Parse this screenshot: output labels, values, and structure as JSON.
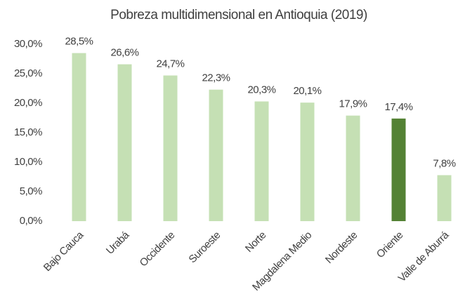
{
  "chart_data": {
    "type": "bar",
    "title": "Pobreza multidimensional en Antioquia (2019)",
    "categories": [
      "Bajo Cauca",
      "Urabá",
      "Occidente",
      "Suroeste",
      "Norte",
      "Magdalena Medio",
      "Nordeste",
      "Oriente",
      "Valle de Aburrá"
    ],
    "values": [
      28.5,
      26.6,
      24.7,
      22.3,
      20.3,
      20.1,
      17.9,
      17.4,
      7.8
    ],
    "value_labels": [
      "28,5%",
      "26,6%",
      "24,7%",
      "22,3%",
      "20,3%",
      "20,1%",
      "17,9%",
      "17,4%",
      "7,8%"
    ],
    "colors": [
      "#c5e0b4",
      "#c5e0b4",
      "#c5e0b4",
      "#c5e0b4",
      "#c5e0b4",
      "#c5e0b4",
      "#c5e0b4",
      "#548235",
      "#c5e0b4"
    ],
    "ylim": [
      0,
      30
    ],
    "yticks": [
      {
        "value": 0,
        "label": "0,0%"
      },
      {
        "value": 5,
        "label": "5,0%"
      },
      {
        "value": 10,
        "label": "10,0%"
      },
      {
        "value": 15,
        "label": "15,0%"
      },
      {
        "value": 20,
        "label": "20,0%"
      },
      {
        "value": 25,
        "label": "25,0%"
      },
      {
        "value": 30,
        "label": "30,0%"
      }
    ],
    "grid": false
  }
}
